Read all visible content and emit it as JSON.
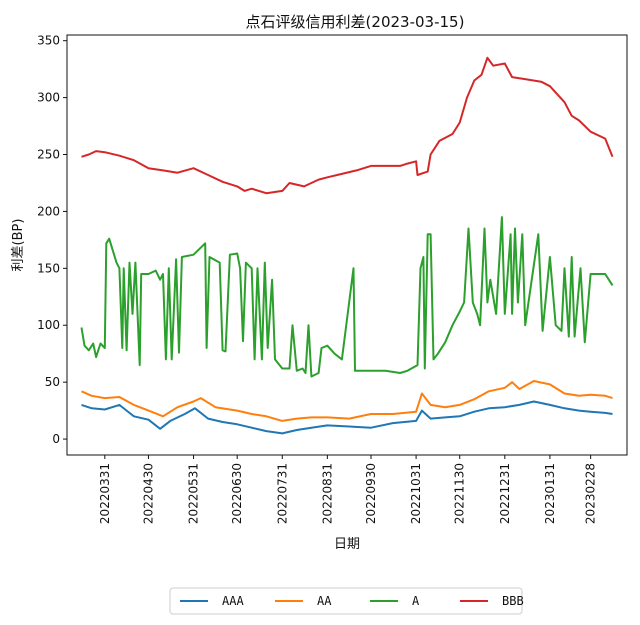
{
  "chart_data": {
    "type": "line",
    "title": "点石评级信用利差(2023-03-15)",
    "xlabel": "日期",
    "ylabel": "利差(BP)",
    "ylim": [
      -14,
      355
    ],
    "yticks": [
      0,
      50,
      100,
      150,
      200,
      250,
      300,
      350
    ],
    "xrange": [
      "2022-03-15",
      "2023-03-15"
    ],
    "xtick_dates": [
      "2022-03-31",
      "2022-04-30",
      "2022-05-31",
      "2022-06-30",
      "2022-07-31",
      "2022-08-31",
      "2022-09-30",
      "2022-10-31",
      "2022-11-30",
      "2022-12-31",
      "2023-01-31",
      "2023-02-28"
    ],
    "xtick_labels": [
      "20220331",
      "20220430",
      "20220531",
      "20220630",
      "20220731",
      "20220831",
      "20220930",
      "20221031",
      "20221130",
      "20221231",
      "20230131",
      "20230228"
    ],
    "grid": false,
    "legend_position": "bottom-center",
    "series": [
      {
        "name": "AAA",
        "color": "#1f77b4",
        "points": [
          [
            "2022-03-15",
            30
          ],
          [
            "2022-03-22",
            27
          ],
          [
            "2022-03-31",
            26
          ],
          [
            "2022-04-10",
            30
          ],
          [
            "2022-04-15",
            25
          ],
          [
            "2022-04-20",
            20
          ],
          [
            "2022-04-30",
            17
          ],
          [
            "2022-05-08",
            9
          ],
          [
            "2022-05-15",
            16
          ],
          [
            "2022-05-25",
            22
          ],
          [
            "2022-06-01",
            27
          ],
          [
            "2022-06-10",
            18
          ],
          [
            "2022-06-20",
            15
          ],
          [
            "2022-06-30",
            13
          ],
          [
            "2022-07-10",
            10
          ],
          [
            "2022-07-20",
            7
          ],
          [
            "2022-07-31",
            5
          ],
          [
            "2022-08-10",
            8
          ],
          [
            "2022-08-20",
            10
          ],
          [
            "2022-08-31",
            12
          ],
          [
            "2022-09-15",
            11
          ],
          [
            "2022-09-30",
            10
          ],
          [
            "2022-10-15",
            14
          ],
          [
            "2022-10-31",
            16
          ],
          [
            "2022-11-04",
            25
          ],
          [
            "2022-11-10",
            18
          ],
          [
            "2022-11-20",
            19
          ],
          [
            "2022-11-30",
            20
          ],
          [
            "2022-12-10",
            24
          ],
          [
            "2022-12-20",
            27
          ],
          [
            "2022-12-31",
            28
          ],
          [
            "2023-01-10",
            30
          ],
          [
            "2023-01-20",
            33
          ],
          [
            "2023-01-31",
            30
          ],
          [
            "2023-02-10",
            27
          ],
          [
            "2023-02-20",
            25
          ],
          [
            "2023-02-28",
            24
          ],
          [
            "2023-03-10",
            23
          ],
          [
            "2023-03-15",
            22
          ]
        ]
      },
      {
        "name": "AA",
        "color": "#ff7f0e",
        "points": [
          [
            "2022-03-15",
            42
          ],
          [
            "2022-03-22",
            38
          ],
          [
            "2022-03-31",
            36
          ],
          [
            "2022-04-10",
            37
          ],
          [
            "2022-04-20",
            30
          ],
          [
            "2022-04-30",
            25
          ],
          [
            "2022-05-10",
            20
          ],
          [
            "2022-05-20",
            28
          ],
          [
            "2022-05-31",
            33
          ],
          [
            "2022-06-05",
            36
          ],
          [
            "2022-06-15",
            28
          ],
          [
            "2022-06-30",
            25
          ],
          [
            "2022-07-10",
            22
          ],
          [
            "2022-07-20",
            20
          ],
          [
            "2022-07-31",
            16
          ],
          [
            "2022-08-10",
            18
          ],
          [
            "2022-08-20",
            19
          ],
          [
            "2022-08-31",
            19
          ],
          [
            "2022-09-15",
            18
          ],
          [
            "2022-09-30",
            22
          ],
          [
            "2022-10-15",
            22
          ],
          [
            "2022-10-31",
            24
          ],
          [
            "2022-11-04",
            40
          ],
          [
            "2022-11-10",
            30
          ],
          [
            "2022-11-20",
            28
          ],
          [
            "2022-11-30",
            30
          ],
          [
            "2022-12-10",
            35
          ],
          [
            "2022-12-20",
            42
          ],
          [
            "2022-12-31",
            45
          ],
          [
            "2023-01-05",
            50
          ],
          [
            "2023-01-10",
            44
          ],
          [
            "2023-01-20",
            51
          ],
          [
            "2023-01-31",
            48
          ],
          [
            "2023-02-10",
            40
          ],
          [
            "2023-02-20",
            38
          ],
          [
            "2023-02-28",
            39
          ],
          [
            "2023-03-10",
            38
          ],
          [
            "2023-03-15",
            36
          ]
        ]
      },
      {
        "name": "A",
        "color": "#2ca02c",
        "points": [
          [
            "2022-03-15",
            98
          ],
          [
            "2022-03-17",
            82
          ],
          [
            "2022-03-20",
            78
          ],
          [
            "2022-03-23",
            84
          ],
          [
            "2022-03-25",
            72
          ],
          [
            "2022-03-28",
            84
          ],
          [
            "2022-03-31",
            80
          ],
          [
            "2022-04-01",
            172
          ],
          [
            "2022-04-03",
            176
          ],
          [
            "2022-04-08",
            155
          ],
          [
            "2022-04-10",
            150
          ],
          [
            "2022-04-12",
            80
          ],
          [
            "2022-04-13",
            150
          ],
          [
            "2022-04-15",
            78
          ],
          [
            "2022-04-17",
            155
          ],
          [
            "2022-04-19",
            110
          ],
          [
            "2022-04-21",
            155
          ],
          [
            "2022-04-24",
            65
          ],
          [
            "2022-04-25",
            145
          ],
          [
            "2022-04-30",
            145
          ],
          [
            "2022-05-05",
            148
          ],
          [
            "2022-05-08",
            140
          ],
          [
            "2022-05-10",
            145
          ],
          [
            "2022-05-12",
            70
          ],
          [
            "2022-05-14",
            150
          ],
          [
            "2022-05-16",
            70
          ],
          [
            "2022-05-19",
            158
          ],
          [
            "2022-05-21",
            76
          ],
          [
            "2022-05-23",
            160
          ],
          [
            "2022-05-31",
            162
          ],
          [
            "2022-06-08",
            172
          ],
          [
            "2022-06-09",
            80
          ],
          [
            "2022-06-11",
            160
          ],
          [
            "2022-06-18",
            155
          ],
          [
            "2022-06-20",
            78
          ],
          [
            "2022-06-22",
            77
          ],
          [
            "2022-06-25",
            162
          ],
          [
            "2022-06-30",
            163
          ],
          [
            "2022-07-02",
            150
          ],
          [
            "2022-07-04",
            86
          ],
          [
            "2022-07-06",
            155
          ],
          [
            "2022-07-10",
            150
          ],
          [
            "2022-07-12",
            70
          ],
          [
            "2022-07-14",
            150
          ],
          [
            "2022-07-17",
            70
          ],
          [
            "2022-07-19",
            155
          ],
          [
            "2022-07-21",
            80
          ],
          [
            "2022-07-24",
            140
          ],
          [
            "2022-07-26",
            70
          ],
          [
            "2022-07-31",
            62
          ],
          [
            "2022-08-05",
            62
          ],
          [
            "2022-08-07",
            100
          ],
          [
            "2022-08-10",
            60
          ],
          [
            "2022-08-14",
            62
          ],
          [
            "2022-08-16",
            58
          ],
          [
            "2022-08-18",
            100
          ],
          [
            "2022-08-20",
            55
          ],
          [
            "2022-08-25",
            58
          ],
          [
            "2022-08-27",
            80
          ],
          [
            "2022-08-31",
            82
          ],
          [
            "2022-09-05",
            75
          ],
          [
            "2022-09-10",
            70
          ],
          [
            "2022-09-18",
            150
          ],
          [
            "2022-09-19",
            60
          ],
          [
            "2022-09-30",
            60
          ],
          [
            "2022-10-10",
            60
          ],
          [
            "2022-10-20",
            58
          ],
          [
            "2022-10-25",
            60
          ],
          [
            "2022-11-01",
            65
          ],
          [
            "2022-11-03",
            150
          ],
          [
            "2022-11-05",
            160
          ],
          [
            "2022-11-06",
            62
          ],
          [
            "2022-11-08",
            180
          ],
          [
            "2022-11-10",
            180
          ],
          [
            "2022-11-12",
            70
          ],
          [
            "2022-11-15",
            75
          ],
          [
            "2022-11-20",
            85
          ],
          [
            "2022-11-25",
            100
          ],
          [
            "2022-11-30",
            112
          ],
          [
            "2022-12-03",
            120
          ],
          [
            "2022-12-06",
            185
          ],
          [
            "2022-12-09",
            120
          ],
          [
            "2022-12-12",
            110
          ],
          [
            "2022-12-14",
            100
          ],
          [
            "2022-12-17",
            185
          ],
          [
            "2022-12-19",
            120
          ],
          [
            "2022-12-21",
            140
          ],
          [
            "2022-12-25",
            110
          ],
          [
            "2022-12-29",
            195
          ],
          [
            "2022-12-31",
            110
          ],
          [
            "2023-01-04",
            180
          ],
          [
            "2023-01-05",
            110
          ],
          [
            "2023-01-07",
            185
          ],
          [
            "2023-01-09",
            120
          ],
          [
            "2023-01-12",
            180
          ],
          [
            "2023-01-14",
            100
          ],
          [
            "2023-01-23",
            180
          ],
          [
            "2023-01-26",
            95
          ],
          [
            "2023-01-31",
            160
          ],
          [
            "2023-02-04",
            100
          ],
          [
            "2023-02-08",
            95
          ],
          [
            "2023-02-10",
            150
          ],
          [
            "2023-02-13",
            90
          ],
          [
            "2023-02-15",
            160
          ],
          [
            "2023-02-17",
            90
          ],
          [
            "2023-02-21",
            150
          ],
          [
            "2023-02-24",
            85
          ],
          [
            "2023-02-28",
            145
          ],
          [
            "2023-03-10",
            145
          ],
          [
            "2023-03-15",
            135
          ]
        ]
      },
      {
        "name": "BBB",
        "color": "#d62728",
        "points": [
          [
            "2022-03-15",
            248
          ],
          [
            "2022-03-20",
            250
          ],
          [
            "2022-03-25",
            253
          ],
          [
            "2022-03-31",
            252
          ],
          [
            "2022-04-10",
            249
          ],
          [
            "2022-04-20",
            245
          ],
          [
            "2022-04-30",
            238
          ],
          [
            "2022-05-10",
            236
          ],
          [
            "2022-05-20",
            234
          ],
          [
            "2022-05-31",
            238
          ],
          [
            "2022-06-10",
            232
          ],
          [
            "2022-06-20",
            226
          ],
          [
            "2022-06-30",
            222
          ],
          [
            "2022-07-05",
            218
          ],
          [
            "2022-07-10",
            220
          ],
          [
            "2022-07-20",
            216
          ],
          [
            "2022-07-31",
            218
          ],
          [
            "2022-08-05",
            225
          ],
          [
            "2022-08-15",
            222
          ],
          [
            "2022-08-25",
            228
          ],
          [
            "2022-08-31",
            230
          ],
          [
            "2022-09-10",
            233
          ],
          [
            "2022-09-20",
            236
          ],
          [
            "2022-09-30",
            240
          ],
          [
            "2022-10-10",
            240
          ],
          [
            "2022-10-20",
            240
          ],
          [
            "2022-10-25",
            242
          ],
          [
            "2022-10-31",
            244
          ],
          [
            "2022-11-01",
            232
          ],
          [
            "2022-11-08",
            235
          ],
          [
            "2022-11-10",
            250
          ],
          [
            "2022-11-16",
            262
          ],
          [
            "2022-11-25",
            268
          ],
          [
            "2022-11-30",
            278
          ],
          [
            "2022-12-05",
            300
          ],
          [
            "2022-12-10",
            315
          ],
          [
            "2022-12-15",
            320
          ],
          [
            "2022-12-19",
            335
          ],
          [
            "2022-12-23",
            328
          ],
          [
            "2022-12-31",
            330
          ],
          [
            "2023-01-05",
            318
          ],
          [
            "2023-01-15",
            316
          ],
          [
            "2023-01-25",
            314
          ],
          [
            "2023-01-31",
            310
          ],
          [
            "2023-02-10",
            296
          ],
          [
            "2023-02-15",
            284
          ],
          [
            "2023-02-20",
            280
          ],
          [
            "2023-02-28",
            270
          ],
          [
            "2023-03-10",
            264
          ],
          [
            "2023-03-15",
            248
          ]
        ]
      }
    ]
  }
}
